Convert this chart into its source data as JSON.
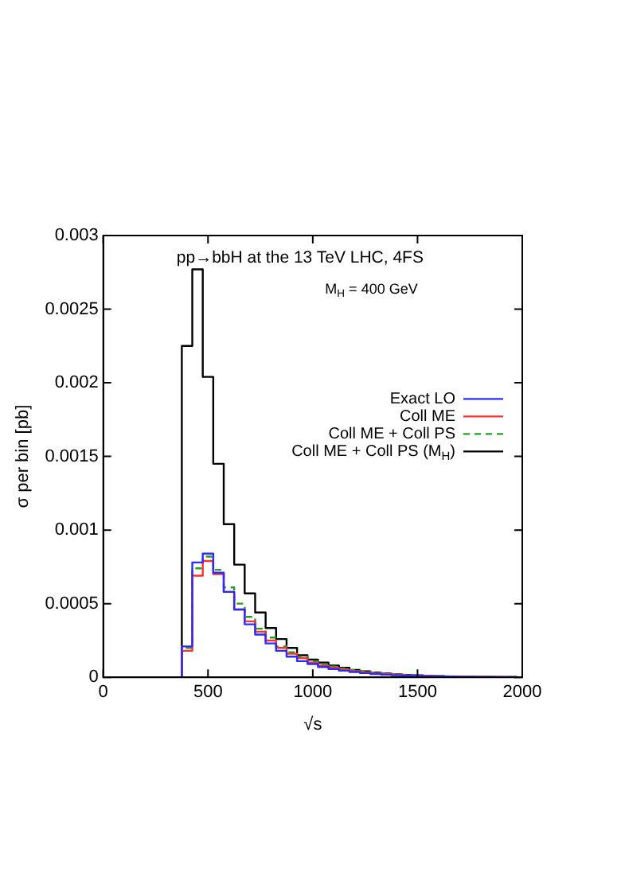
{
  "chart_data": {
    "type": "histogram",
    "title": "pp→bbH at the 13 TeV LHC, 4FS",
    "xlabel": "√s",
    "ylabel": "σ per bin [pb]",
    "annotations": [
      "M$_{H}$ = 400 GeV"
    ],
    "bins": [
      375,
      425,
      475,
      525,
      575,
      625,
      675,
      725,
      775,
      825,
      875,
      925,
      975,
      1025,
      1075,
      1125,
      1175,
      1225,
      1275,
      1325,
      1375,
      1425,
      1475,
      1525,
      1575,
      1625,
      1675,
      1725,
      1775,
      1825,
      1875,
      1925,
      1975
    ],
    "series": [
      {
        "name": "Exact LO",
        "color": "#2b2bff",
        "values": [
          0.00021,
          0.00078,
          0.00084,
          0.00071,
          0.00058,
          0.00046,
          0.00036,
          0.00029,
          0.00023,
          0.00018,
          0.00014,
          0.00011,
          9e-05,
          7e-05,
          5.6e-05,
          4.5e-05,
          3.6e-05,
          2.9e-05,
          2.3e-05,
          1.8e-05,
          1.4e-05,
          1.1e-05,
          9e-06,
          7e-06,
          6e-06,
          5e-06,
          4e-06,
          3e-06,
          2e-06,
          2e-06,
          2e-06,
          1e-06
        ]
      },
      {
        "name": "Coll ME",
        "color": "#ff3030",
        "values": [
          0.00018,
          0.00069,
          0.00079,
          0.0007,
          0.00058,
          0.00046,
          0.00038,
          0.00031,
          0.00025,
          0.0002,
          0.00016,
          0.00013,
          0.0001,
          8e-05,
          6.5e-05,
          5.2e-05,
          4.2e-05,
          3.4e-05,
          2.7e-05,
          2.2e-05,
          1.7e-05,
          1.4e-05,
          1.1e-05,
          9e-06,
          7e-06,
          6e-06,
          5e-06,
          4e-06,
          3e-06,
          2e-06,
          2e-06,
          1e-06
        ]
      },
      {
        "name": "Coll ME + Coll PS",
        "color": "#20a020",
        "line_style": "dashed",
        "values": [
          0.0002,
          0.00074,
          0.00082,
          0.00073,
          0.00061,
          0.0005,
          0.00041,
          0.00033,
          0.00027,
          0.00021,
          0.00017,
          0.00014,
          0.00011,
          9e-05,
          7.3e-05,
          6e-05,
          4.9e-05,
          4e-05,
          3.2e-05,
          2.6e-05,
          2.1e-05,
          1.7e-05,
          1.4e-05,
          1.1e-05,
          9e-06,
          7e-06,
          6e-06,
          5e-06,
          4e-06,
          3e-06,
          2e-06,
          2e-06
        ]
      },
      {
        "name": "Coll ME + Coll PS (M$_{H}$)",
        "color": "#000000",
        "values": [
          0.00225,
          0.00277,
          0.00204,
          0.00145,
          0.00104,
          0.000765,
          0.00057,
          0.00044,
          0.000335,
          0.00026,
          0.0002,
          0.00015,
          0.00012,
          0.0001,
          8e-05,
          6.5e-05,
          5e-05,
          4e-05,
          3.2e-05,
          2.5e-05,
          2e-05,
          1.6e-05,
          1.3e-05,
          1e-05,
          8e-06,
          6e-06,
          5e-06,
          4e-06,
          3e-06,
          3e-06,
          2e-06,
          2e-06
        ]
      }
    ],
    "xlim": [
      0,
      2000
    ],
    "xticks": [
      0,
      500,
      1000,
      1500,
      2000
    ],
    "ylim": [
      0,
      0.003
    ],
    "yticks": [
      0,
      0.0005,
      0.001,
      0.0015,
      0.002,
      0.0025,
      0.003
    ],
    "grid": false,
    "legend": "right"
  }
}
